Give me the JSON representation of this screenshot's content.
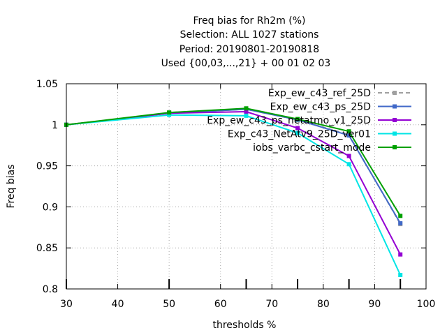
{
  "chart_data": {
    "type": "line",
    "title": [
      "Freq bias  for Rh2m (%)",
      "Selection: ALL    1027 stations",
      "Period: 20190801-20190818",
      "Used {00,03,...,21} + 00 01 02 03"
    ],
    "xlabel": "thresholds %",
    "ylabel": "Freq bias",
    "xlim": [
      30,
      100
    ],
    "ylim": [
      0.8,
      1.05
    ],
    "xticks": [
      30,
      40,
      50,
      60,
      70,
      80,
      90,
      100
    ],
    "yticks": [
      0.8,
      0.85,
      0.9,
      0.95,
      1,
      1.05
    ],
    "xtick_labels": [
      "30",
      "40",
      "50",
      "60",
      "70",
      "80",
      "90",
      "100"
    ],
    "ytick_labels": [
      "0.8",
      "0.85",
      "0.9",
      "0.95",
      "1",
      "1.05"
    ],
    "grid": true,
    "legend_position": "top-right",
    "x": [
      30,
      50,
      65,
      75,
      85,
      95
    ],
    "series": [
      {
        "name": "Exp_ew_c43_ref_25D",
        "color": "#a0a0a0",
        "dash": "6,4",
        "values": [
          1.0,
          1.014,
          1.019,
          1.006,
          0.988,
          0.879
        ]
      },
      {
        "name": "Exp_ew_c43_ps_25D",
        "color": "#4169c8",
        "dash": "",
        "values": [
          1.0,
          1.014,
          1.019,
          1.006,
          0.987,
          0.88
        ]
      },
      {
        "name": "Exp_ew_c43_ps_netatmo_v1_25D",
        "color": "#9400d3",
        "dash": "",
        "values": [
          1.0,
          1.014,
          1.016,
          0.996,
          0.962,
          0.842
        ]
      },
      {
        "name": "Exp_c43_NetAtv9_25D_ver01",
        "color": "#00e5e5",
        "dash": "",
        "values": [
          1.0,
          1.012,
          1.011,
          0.99,
          0.952,
          0.817
        ]
      },
      {
        "name": "iobs_varbc_cstart_mode",
        "color": "#00a000",
        "dash": "",
        "values": [
          1.0,
          1.015,
          1.02,
          1.007,
          0.992,
          0.889
        ]
      }
    ]
  }
}
